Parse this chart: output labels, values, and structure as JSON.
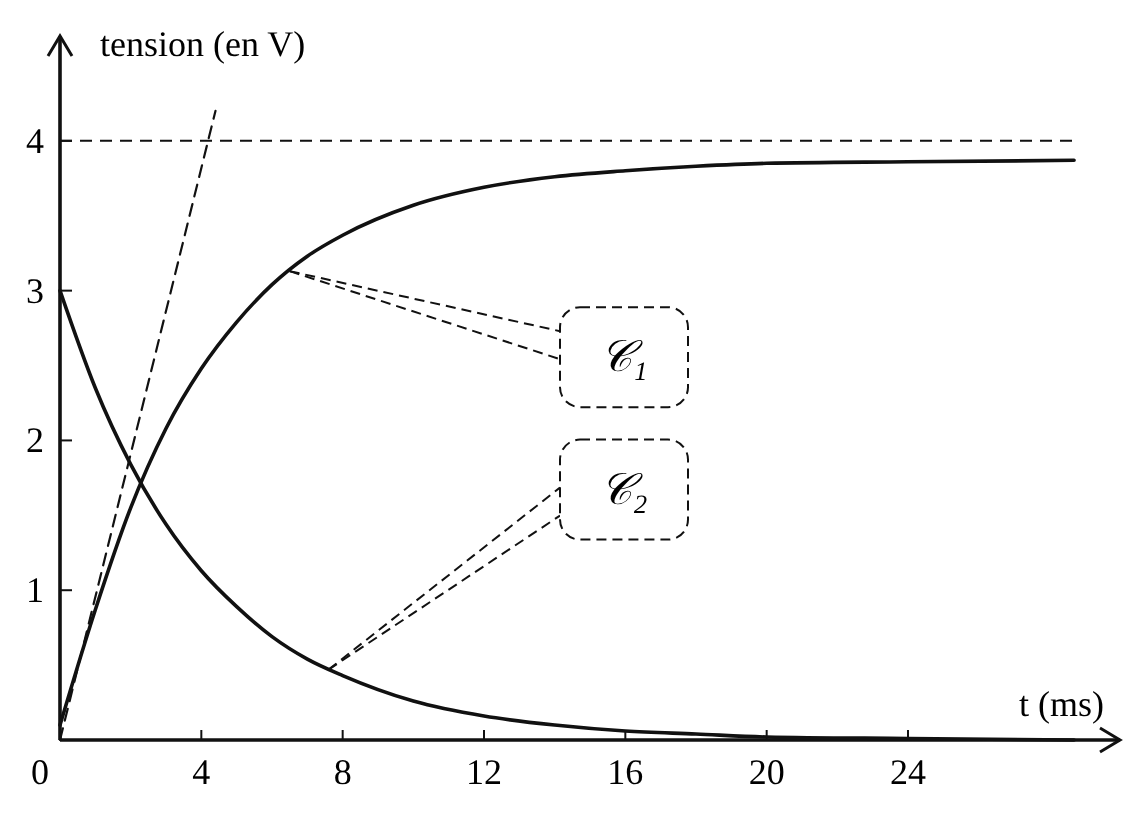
{
  "chart_data": {
    "type": "line",
    "xlabel": "t (ms)",
    "ylabel": "tension (en V)",
    "xlim": [
      0,
      30
    ],
    "ylim": [
      0,
      4.7
    ],
    "xticks": [
      0,
      4,
      8,
      12,
      16,
      20,
      24
    ],
    "yticks": [
      1,
      2,
      3,
      4
    ],
    "line_style": "solid",
    "marker": "none",
    "grid": false,
    "series": [
      {
        "color": "#111111",
        "x": [
          0,
          1,
          2,
          3,
          4,
          5,
          6,
          7,
          8,
          10,
          12,
          14,
          16,
          18,
          20,
          24,
          28.7
        ],
        "values": [
          0.1,
          0.87,
          1.55,
          2.08,
          2.48,
          2.79,
          3.04,
          3.23,
          3.37,
          3.57,
          3.69,
          3.76,
          3.8,
          3.83,
          3.85,
          3.86,
          3.87
        ]
      },
      {
        "color": "#111111",
        "x": [
          0,
          1,
          2,
          3,
          4,
          5,
          6,
          7,
          8,
          10,
          12,
          14,
          16,
          18,
          20,
          24,
          28.7
        ],
        "values": [
          3,
          2.35,
          1.84,
          1.44,
          1.13,
          0.89,
          0.69,
          0.54,
          0.43,
          0.26,
          0.16,
          0.1,
          0.06,
          0.04,
          0.02,
          0.01,
          0
        ]
      },
      {
        "color": "#111111",
        "line_style": "dashed",
        "x": [
          0,
          4.4
        ],
        "values": [
          0,
          4.2
        ]
      }
    ],
    "ref_lines": [
      {
        "axis": "y",
        "value": 4,
        "line_style": "dashed",
        "color": "#111111"
      }
    ],
    "annotations": [
      {
        "text": "𝒞₁",
        "x": 6.5,
        "y": 3.13
      },
      {
        "text": "𝒞₂",
        "x": 7.6,
        "y": 0.47
      }
    ]
  }
}
